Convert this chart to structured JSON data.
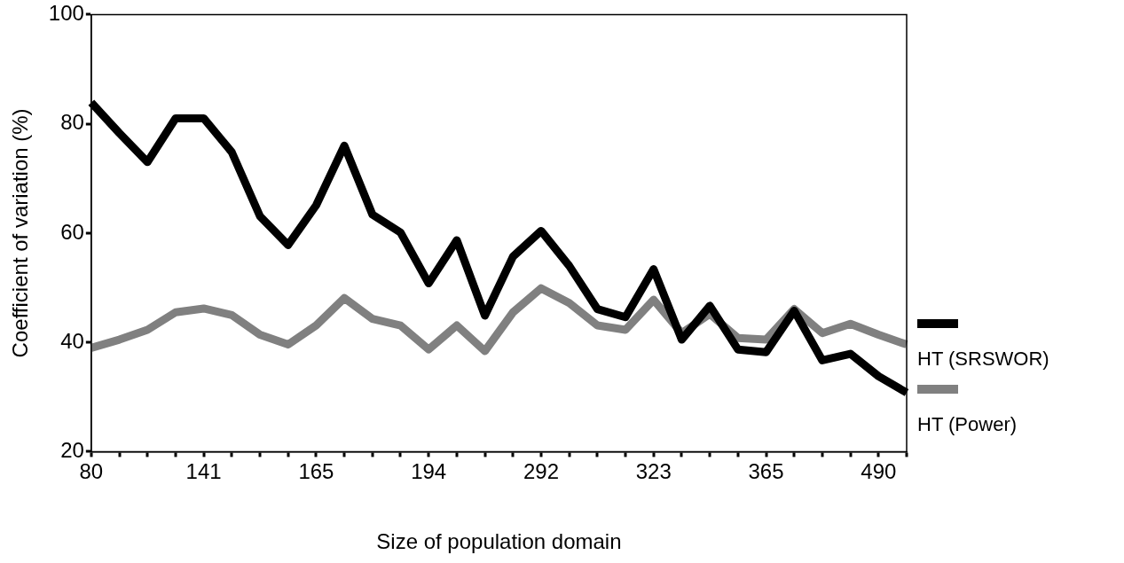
{
  "chart_data": {
    "type": "line",
    "xlabel": "Size of population domain",
    "ylabel": "Coefficient of variation (%)",
    "categories": [
      "80",
      null,
      null,
      null,
      "141",
      null,
      null,
      null,
      "165",
      null,
      null,
      null,
      "194",
      null,
      null,
      null,
      "292",
      null,
      null,
      null,
      "323",
      null,
      null,
      null,
      "365",
      null,
      null,
      null,
      "490",
      null
    ],
    "series": [
      {
        "name": "HT (SRSWOR)",
        "color": "#000000",
        "values": [
          83.9,
          78.3,
          73.0,
          81.0,
          81.0,
          74.8,
          63.1,
          57.8,
          65.1,
          76.0,
          63.4,
          60.1,
          50.8,
          58.7,
          44.9,
          55.7,
          60.4,
          54.0,
          46.1,
          44.6,
          53.4,
          40.5,
          46.7,
          38.7,
          38.2,
          45.8,
          36.7,
          37.9,
          33.8,
          30.8
        ]
      },
      {
        "name": "HT (Power)",
        "color": "#808080",
        "values": [
          39.0,
          40.5,
          42.3,
          45.5,
          46.2,
          45.0,
          41.4,
          39.6,
          43.1,
          48.1,
          44.3,
          43.1,
          38.7,
          43.1,
          38.4,
          45.5,
          49.9,
          47.2,
          43.1,
          42.3,
          47.8,
          41.7,
          45.2,
          40.8,
          40.5,
          46.1,
          41.7,
          43.4,
          41.4,
          39.6
        ]
      }
    ],
    "ylim": [
      20,
      100
    ],
    "yticks": [
      20,
      40,
      60,
      80,
      100
    ],
    "grid": false,
    "legend": "right",
    "marker": "none",
    "line_style": "solid"
  }
}
